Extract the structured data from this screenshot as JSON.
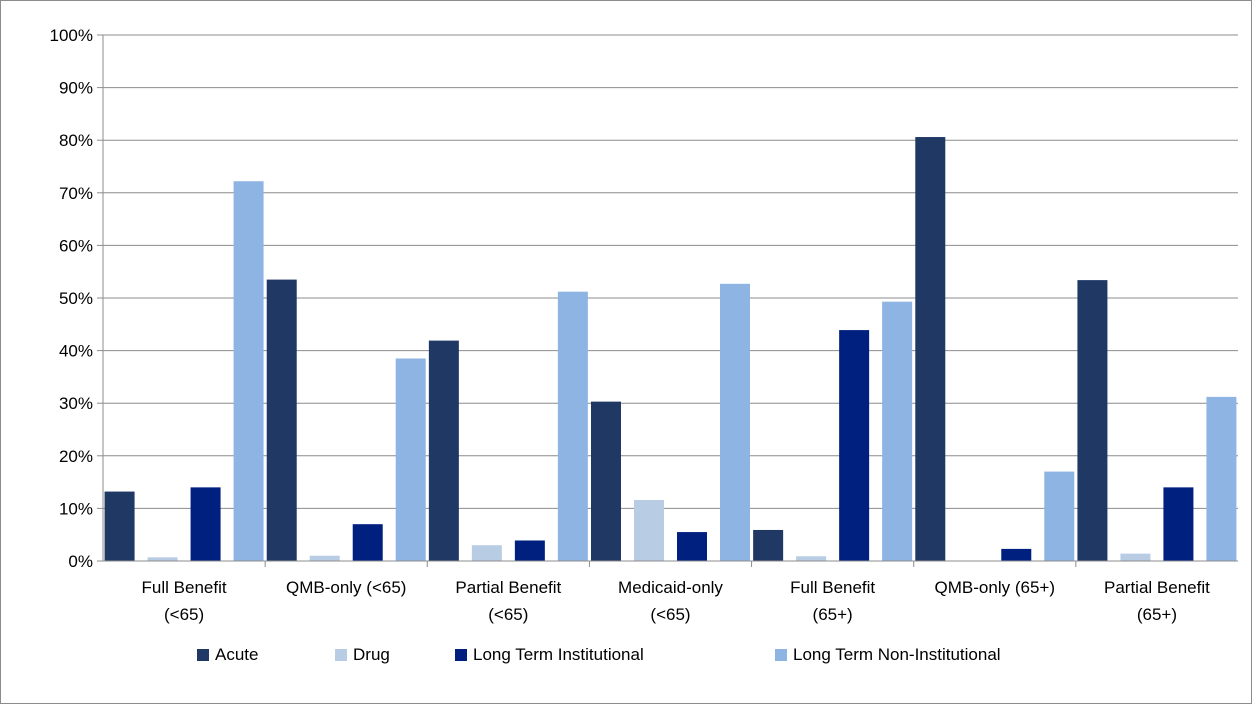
{
  "chart_data": {
    "type": "bar",
    "title": "",
    "xlabel": "",
    "ylabel": "",
    "ylim": [
      0,
      100
    ],
    "yticks": [
      "0%",
      "10%",
      "20%",
      "30%",
      "40%",
      "50%",
      "60%",
      "70%",
      "80%",
      "90%",
      "100%"
    ],
    "grid": true,
    "legend_position": "bottom",
    "categories": [
      [
        "Full Benefit",
        "(<65)"
      ],
      [
        "QMB-only (<65)"
      ],
      [
        "Partial Benefit",
        "(<65)"
      ],
      [
        "Medicaid-only",
        "(<65)"
      ],
      [
        "Full Benefit",
        "(65+)"
      ],
      [
        "QMB-only (65+)"
      ],
      [
        "Partial Benefit",
        "(65+)"
      ]
    ],
    "series": [
      {
        "name": "Acute",
        "color": "#1f3864",
        "values": [
          13.2,
          53.5,
          41.9,
          30.3,
          5.9,
          80.6,
          53.4
        ]
      },
      {
        "name": "Drug",
        "color": "#b8cce4",
        "values": [
          0.7,
          1.0,
          3.0,
          11.6,
          0.9,
          0.0,
          1.4
        ]
      },
      {
        "name": "Long Term Institutional",
        "color": "#002080",
        "values": [
          14.0,
          7.0,
          3.9,
          5.5,
          43.9,
          2.3,
          14.0
        ]
      },
      {
        "name": "Long Term Non-Institutional",
        "color": "#8eb4e3",
        "values": [
          72.2,
          38.5,
          51.2,
          52.7,
          49.3,
          17.0,
          31.2
        ]
      }
    ]
  }
}
